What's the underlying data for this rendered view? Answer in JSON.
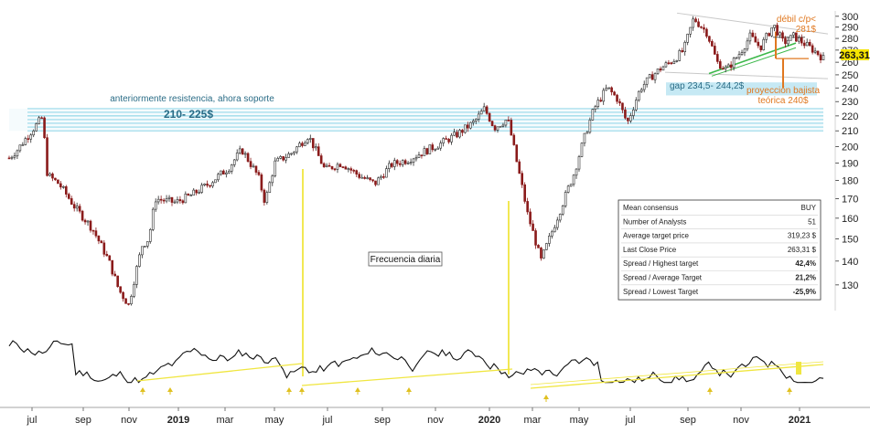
{
  "chart_data": {
    "type": "candlestick",
    "title": "",
    "frequency_label": "Frecuencia diaria",
    "y_axis": {
      "scale": "log",
      "range": [
        120,
        305
      ],
      "ticks": [
        130,
        140,
        150,
        160,
        170,
        180,
        190,
        200,
        210,
        220,
        230,
        240,
        250,
        260,
        270,
        280,
        290,
        300
      ],
      "last_price_label": "263,31"
    },
    "x_axis": {
      "tick_labels": [
        {
          "label": "jul",
          "year": false
        },
        {
          "label": "sep",
          "year": false
        },
        {
          "label": "nov",
          "year": false
        },
        {
          "label": "2019",
          "year": true
        },
        {
          "label": "mar",
          "year": false
        },
        {
          "label": "may",
          "year": false
        },
        {
          "label": "jul",
          "year": false
        },
        {
          "label": "sep",
          "year": false
        },
        {
          "label": "nov",
          "year": false
        },
        {
          "label": "2020",
          "year": true
        },
        {
          "label": "mar",
          "year": false
        },
        {
          "label": "may",
          "year": false
        },
        {
          "label": "jul",
          "year": false
        },
        {
          "label": "sep",
          "year": false
        },
        {
          "label": "nov",
          "year": false
        },
        {
          "label": "2021",
          "year": true
        }
      ]
    },
    "price_series": [
      {
        "t": 0.0,
        "v": 193
      },
      {
        "t": 0.25,
        "v": 198
      },
      {
        "t": 0.5,
        "v": 205
      },
      {
        "t": 0.75,
        "v": 212
      },
      {
        "t": 1.0,
        "v": 219
      },
      {
        "t": 1.15,
        "v": 183
      },
      {
        "t": 1.5,
        "v": 178
      },
      {
        "t": 2.0,
        "v": 165
      },
      {
        "t": 2.5,
        "v": 155
      },
      {
        "t": 3.0,
        "v": 140
      },
      {
        "t": 3.3,
        "v": 128
      },
      {
        "t": 3.6,
        "v": 122
      },
      {
        "t": 4.0,
        "v": 147
      },
      {
        "t": 4.2,
        "v": 150
      },
      {
        "t": 4.4,
        "v": 170
      },
      {
        "t": 5.0,
        "v": 168
      },
      {
        "t": 5.5,
        "v": 172
      },
      {
        "t": 6.0,
        "v": 178
      },
      {
        "t": 6.6,
        "v": 187
      },
      {
        "t": 7.0,
        "v": 198
      },
      {
        "t": 7.5,
        "v": 182
      },
      {
        "t": 7.7,
        "v": 168
      },
      {
        "t": 8.0,
        "v": 190
      },
      {
        "t": 8.5,
        "v": 196
      },
      {
        "t": 9.0,
        "v": 207
      },
      {
        "t": 9.5,
        "v": 186
      },
      {
        "t": 10.0,
        "v": 190
      },
      {
        "t": 10.5,
        "v": 183
      },
      {
        "t": 11.0,
        "v": 178
      },
      {
        "t": 11.5,
        "v": 189
      },
      {
        "t": 12.0,
        "v": 192
      },
      {
        "t": 12.5,
        "v": 197
      },
      {
        "t": 13.0,
        "v": 202
      },
      {
        "t": 13.5,
        "v": 208
      },
      {
        "t": 14.0,
        "v": 216
      },
      {
        "t": 14.3,
        "v": 225
      },
      {
        "t": 14.6,
        "v": 212
      },
      {
        "t": 15.0,
        "v": 218
      },
      {
        "t": 15.3,
        "v": 188
      },
      {
        "t": 15.6,
        "v": 162
      },
      {
        "t": 16.0,
        "v": 140
      },
      {
        "t": 16.3,
        "v": 152
      },
      {
        "t": 16.6,
        "v": 165
      },
      {
        "t": 17.0,
        "v": 184
      },
      {
        "t": 17.3,
        "v": 205
      },
      {
        "t": 17.6,
        "v": 225
      },
      {
        "t": 18.0,
        "v": 240
      },
      {
        "t": 18.3,
        "v": 232
      },
      {
        "t": 18.6,
        "v": 215
      },
      {
        "t": 19.0,
        "v": 240
      },
      {
        "t": 19.3,
        "v": 248
      },
      {
        "t": 19.6,
        "v": 255
      },
      {
        "t": 20.0,
        "v": 262
      },
      {
        "t": 20.3,
        "v": 270
      },
      {
        "t": 20.6,
        "v": 298
      },
      {
        "t": 21.0,
        "v": 285
      },
      {
        "t": 21.3,
        "v": 260
      },
      {
        "t": 21.6,
        "v": 254
      },
      {
        "t": 22.0,
        "v": 268
      },
      {
        "t": 22.3,
        "v": 282
      },
      {
        "t": 22.6,
        "v": 272
      },
      {
        "t": 23.0,
        "v": 292
      },
      {
        "t": 23.3,
        "v": 276
      },
      {
        "t": 23.6,
        "v": 282
      },
      {
        "t": 24.0,
        "v": 274
      },
      {
        "t": 24.3,
        "v": 268
      },
      {
        "t": 24.5,
        "v": 263
      }
    ],
    "horizontal_levels": [
      210,
      212.5,
      215,
      217.5,
      220,
      222.5,
      225
    ],
    "annotations": {
      "support_note": "anteriormente resistencia, ahora soporte",
      "support_range": "210- 225$",
      "gap_label": "gap 234,5- 244,2$",
      "projection_line1": "proyección bajista",
      "projection_line2": "teórica 240$",
      "weak_label": "débil c/p<",
      "weak_value": "281$"
    },
    "consensus_table": [
      {
        "label": "Mean consensus",
        "value": "BUY",
        "color": "#222222"
      },
      {
        "label": "Number of Analysts",
        "value": "51",
        "color": "#222222"
      },
      {
        "label": "Average target price",
        "value": "319,23 $",
        "color": "#222222"
      },
      {
        "label": "Last Close Price",
        "value": "263,31 $",
        "color": "#222222"
      },
      {
        "label": "Spread / Highest target",
        "value": "42,4%",
        "color": "#1a9a1a"
      },
      {
        "label": "Spread / Average Target",
        "value": "21,2%",
        "color": "#1a9a1a"
      },
      {
        "label": "Spread / Lowest Target",
        "value": "-25,9%",
        "color": "#cc2222"
      }
    ],
    "colors": {
      "support_band": "#7ccfe3",
      "gap_zone": "#aee0f0",
      "yellow_lines": "#f0e640",
      "orange": "#e07820",
      "green_trend": "#3cb84a",
      "gray_channel": "#c8c8c8",
      "last_price_bg": "#f5e400"
    }
  }
}
